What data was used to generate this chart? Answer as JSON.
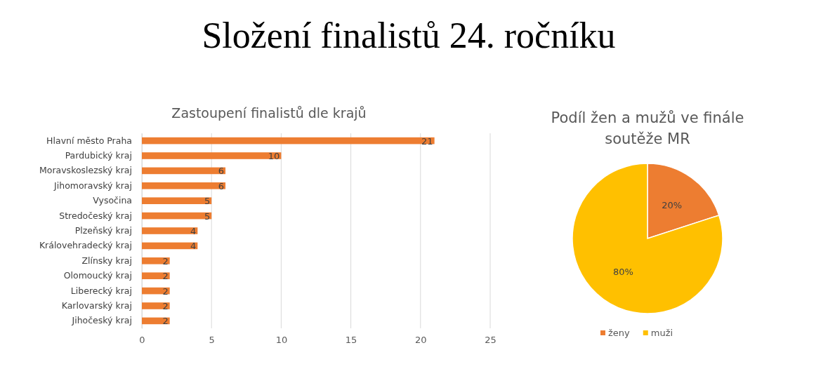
{
  "chart_data": [
    {
      "type": "other",
      "title": "Složení finalistů 24. ročníku"
    },
    {
      "type": "bar",
      "orientation": "horizontal",
      "title": "Zastoupení finalistů dle krajů",
      "categories": [
        "Hlavní město Praha",
        "Pardubický kraj",
        "Moravskoslezský kraj",
        "Jihomoravský kraj",
        "Vysočina",
        "Stredočeský kraj",
        "Plzeňský kraj",
        "Královehradecký kraj",
        "Zlínsky kraj",
        "Olomoucký kraj",
        "Liberecký kraj",
        "Karlovarský kraj",
        "Jihočeský kraj"
      ],
      "values": [
        21,
        10,
        6,
        6,
        5,
        5,
        4,
        4,
        2,
        2,
        2,
        2,
        2
      ],
      "color": "#ed7d31",
      "xlim": [
        0,
        25
      ],
      "xticks": [
        0,
        5,
        10,
        15,
        20,
        25
      ],
      "grid": "x",
      "data_labels": true,
      "legend": false
    },
    {
      "type": "pie",
      "title": "Podíl žen a mužů ve finále soutěže MR",
      "categories": [
        "ženy",
        "muži"
      ],
      "values": [
        20,
        80
      ],
      "colors": [
        "#ed7d31",
        "#ffc000"
      ],
      "value_labels": [
        "20%",
        "80%"
      ],
      "legend": "bottom"
    }
  ]
}
